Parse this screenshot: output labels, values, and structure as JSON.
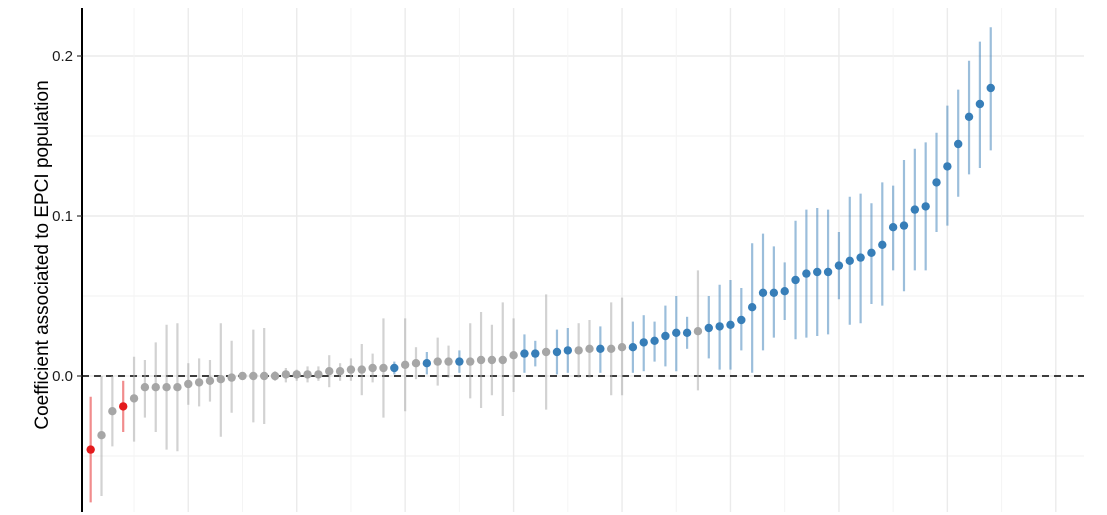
{
  "chart_data": {
    "type": "scatter",
    "title": "",
    "xlabel": "",
    "ylabel": "Coefficient associated to EPCI population",
    "ylim": [
      -0.085,
      0.23
    ],
    "xlim": [
      0.2,
      92.6
    ],
    "y_ticks": [
      0.0,
      0.1,
      0.2
    ],
    "y_tick_labels": [
      "0.0",
      "0.1",
      "0.2"
    ],
    "reference_line": {
      "y": 0.0,
      "style": "dashed"
    },
    "grid": true,
    "legend": "none",
    "colors": {
      "negative_significant": "#e41a1c",
      "non_significant": "#a6a6a6",
      "positive_significant": "#377eb8",
      "grid": "#ebebeb"
    },
    "categories_per_point": [
      "negative",
      "non_significant",
      "positive"
    ],
    "points": [
      {
        "x": 1,
        "y": -0.046,
        "lo": -0.079,
        "hi": -0.013,
        "group": "negative"
      },
      {
        "x": 2,
        "y": -0.037,
        "lo": -0.075,
        "hi": 0.0,
        "group": "non_significant"
      },
      {
        "x": 3,
        "y": -0.022,
        "lo": -0.044,
        "hi": 0.0,
        "group": "non_significant"
      },
      {
        "x": 4,
        "y": -0.019,
        "lo": -0.035,
        "hi": -0.003,
        "group": "negative"
      },
      {
        "x": 5,
        "y": -0.014,
        "lo": -0.041,
        "hi": 0.012,
        "group": "non_significant"
      },
      {
        "x": 6,
        "y": -0.007,
        "lo": -0.026,
        "hi": 0.01,
        "group": "non_significant"
      },
      {
        "x": 7,
        "y": -0.007,
        "lo": -0.035,
        "hi": 0.021,
        "group": "non_significant"
      },
      {
        "x": 8,
        "y": -0.007,
        "lo": -0.046,
        "hi": 0.032,
        "group": "non_significant"
      },
      {
        "x": 9,
        "y": -0.007,
        "lo": -0.047,
        "hi": 0.033,
        "group": "non_significant"
      },
      {
        "x": 10,
        "y": -0.005,
        "lo": -0.018,
        "hi": 0.008,
        "group": "non_significant"
      },
      {
        "x": 11,
        "y": -0.004,
        "lo": -0.019,
        "hi": 0.011,
        "group": "non_significant"
      },
      {
        "x": 12,
        "y": -0.003,
        "lo": -0.016,
        "hi": 0.01,
        "group": "non_significant"
      },
      {
        "x": 13,
        "y": -0.002,
        "lo": -0.038,
        "hi": 0.033,
        "group": "non_significant"
      },
      {
        "x": 14,
        "y": -0.001,
        "lo": -0.023,
        "hi": 0.022,
        "group": "non_significant"
      },
      {
        "x": 15,
        "y": 0.0,
        "lo": -0.002,
        "hi": 0.002,
        "group": "non_significant"
      },
      {
        "x": 16,
        "y": 0.0,
        "lo": -0.029,
        "hi": 0.029,
        "group": "non_significant"
      },
      {
        "x": 17,
        "y": 0.0,
        "lo": -0.03,
        "hi": 0.03,
        "group": "non_significant"
      },
      {
        "x": 18,
        "y": 0.0,
        "lo": -0.003,
        "hi": 0.003,
        "group": "non_significant"
      },
      {
        "x": 19,
        "y": 0.001,
        "lo": -0.004,
        "hi": 0.005,
        "group": "non_significant"
      },
      {
        "x": 20,
        "y": 0.001,
        "lo": -0.003,
        "hi": 0.004,
        "group": "non_significant"
      },
      {
        "x": 21,
        "y": 0.001,
        "lo": -0.004,
        "hi": 0.006,
        "group": "non_significant"
      },
      {
        "x": 22,
        "y": 0.001,
        "lo": -0.003,
        "hi": 0.006,
        "group": "non_significant"
      },
      {
        "x": 23,
        "y": 0.003,
        "lo": -0.007,
        "hi": 0.013,
        "group": "non_significant"
      },
      {
        "x": 24,
        "y": 0.003,
        "lo": -0.003,
        "hi": 0.008,
        "group": "non_significant"
      },
      {
        "x": 25,
        "y": 0.004,
        "lo": -0.003,
        "hi": 0.011,
        "group": "non_significant"
      },
      {
        "x": 26,
        "y": 0.004,
        "lo": -0.012,
        "hi": 0.02,
        "group": "non_significant"
      },
      {
        "x": 27,
        "y": 0.005,
        "lo": -0.004,
        "hi": 0.014,
        "group": "non_significant"
      },
      {
        "x": 28,
        "y": 0.005,
        "lo": -0.026,
        "hi": 0.036,
        "group": "non_significant"
      },
      {
        "x": 29,
        "y": 0.005,
        "lo": 0.001,
        "hi": 0.009,
        "group": "positive"
      },
      {
        "x": 30,
        "y": 0.007,
        "lo": -0.022,
        "hi": 0.036,
        "group": "non_significant"
      },
      {
        "x": 31,
        "y": 0.008,
        "lo": -0.002,
        "hi": 0.018,
        "group": "non_significant"
      },
      {
        "x": 32,
        "y": 0.008,
        "lo": 0.001,
        "hi": 0.015,
        "group": "positive"
      },
      {
        "x": 33,
        "y": 0.009,
        "lo": -0.006,
        "hi": 0.024,
        "group": "non_significant"
      },
      {
        "x": 34,
        "y": 0.009,
        "lo": -0.001,
        "hi": 0.019,
        "group": "non_significant"
      },
      {
        "x": 35,
        "y": 0.009,
        "lo": 0.002,
        "hi": 0.016,
        "group": "positive"
      },
      {
        "x": 36,
        "y": 0.009,
        "lo": -0.014,
        "hi": 0.033,
        "group": "non_significant"
      },
      {
        "x": 37,
        "y": 0.01,
        "lo": -0.02,
        "hi": 0.04,
        "group": "non_significant"
      },
      {
        "x": 38,
        "y": 0.01,
        "lo": -0.012,
        "hi": 0.032,
        "group": "non_significant"
      },
      {
        "x": 39,
        "y": 0.01,
        "lo": -0.025,
        "hi": 0.046,
        "group": "non_significant"
      },
      {
        "x": 40,
        "y": 0.013,
        "lo": -0.01,
        "hi": 0.036,
        "group": "non_significant"
      },
      {
        "x": 41,
        "y": 0.014,
        "lo": 0.002,
        "hi": 0.026,
        "group": "positive"
      },
      {
        "x": 42,
        "y": 0.014,
        "lo": 0.006,
        "hi": 0.022,
        "group": "positive"
      },
      {
        "x": 43,
        "y": 0.015,
        "lo": -0.021,
        "hi": 0.051,
        "group": "non_significant"
      },
      {
        "x": 44,
        "y": 0.015,
        "lo": 0.001,
        "hi": 0.029,
        "group": "positive"
      },
      {
        "x": 45,
        "y": 0.016,
        "lo": 0.002,
        "hi": 0.03,
        "group": "positive"
      },
      {
        "x": 46,
        "y": 0.016,
        "lo": -0.001,
        "hi": 0.033,
        "group": "non_significant"
      },
      {
        "x": 47,
        "y": 0.017,
        "lo": -0.001,
        "hi": 0.035,
        "group": "non_significant"
      },
      {
        "x": 48,
        "y": 0.017,
        "lo": 0.002,
        "hi": 0.031,
        "group": "positive"
      },
      {
        "x": 49,
        "y": 0.017,
        "lo": -0.012,
        "hi": 0.046,
        "group": "non_significant"
      },
      {
        "x": 50,
        "y": 0.018,
        "lo": -0.012,
        "hi": 0.049,
        "group": "non_significant"
      },
      {
        "x": 51,
        "y": 0.018,
        "lo": 0.002,
        "hi": 0.034,
        "group": "positive"
      },
      {
        "x": 52,
        "y": 0.021,
        "lo": 0.003,
        "hi": 0.038,
        "group": "positive"
      },
      {
        "x": 53,
        "y": 0.022,
        "lo": 0.009,
        "hi": 0.034,
        "group": "positive"
      },
      {
        "x": 54,
        "y": 0.025,
        "lo": 0.006,
        "hi": 0.044,
        "group": "positive"
      },
      {
        "x": 55,
        "y": 0.027,
        "lo": 0.003,
        "hi": 0.05,
        "group": "positive"
      },
      {
        "x": 56,
        "y": 0.027,
        "lo": 0.017,
        "hi": 0.037,
        "group": "positive"
      },
      {
        "x": 57,
        "y": 0.028,
        "lo": -0.009,
        "hi": 0.066,
        "group": "non_significant"
      },
      {
        "x": 58,
        "y": 0.03,
        "lo": 0.011,
        "hi": 0.05,
        "group": "positive"
      },
      {
        "x": 59,
        "y": 0.031,
        "lo": 0.004,
        "hi": 0.057,
        "group": "positive"
      },
      {
        "x": 60,
        "y": 0.032,
        "lo": 0.004,
        "hi": 0.06,
        "group": "positive"
      },
      {
        "x": 61,
        "y": 0.035,
        "lo": 0.016,
        "hi": 0.055,
        "group": "positive"
      },
      {
        "x": 62,
        "y": 0.043,
        "lo": 0.002,
        "hi": 0.083,
        "group": "positive"
      },
      {
        "x": 63,
        "y": 0.052,
        "lo": 0.016,
        "hi": 0.089,
        "group": "positive"
      },
      {
        "x": 64,
        "y": 0.052,
        "lo": 0.024,
        "hi": 0.081,
        "group": "positive"
      },
      {
        "x": 65,
        "y": 0.053,
        "lo": 0.035,
        "hi": 0.071,
        "group": "positive"
      },
      {
        "x": 66,
        "y": 0.06,
        "lo": 0.023,
        "hi": 0.097,
        "group": "positive"
      },
      {
        "x": 67,
        "y": 0.064,
        "lo": 0.024,
        "hi": 0.104,
        "group": "positive"
      },
      {
        "x": 68,
        "y": 0.065,
        "lo": 0.025,
        "hi": 0.105,
        "group": "positive"
      },
      {
        "x": 69,
        "y": 0.065,
        "lo": 0.026,
        "hi": 0.104,
        "group": "positive"
      },
      {
        "x": 70,
        "y": 0.069,
        "lo": 0.048,
        "hi": 0.09,
        "group": "positive"
      },
      {
        "x": 71,
        "y": 0.072,
        "lo": 0.032,
        "hi": 0.112,
        "group": "positive"
      },
      {
        "x": 72,
        "y": 0.074,
        "lo": 0.033,
        "hi": 0.114,
        "group": "positive"
      },
      {
        "x": 73,
        "y": 0.077,
        "lo": 0.045,
        "hi": 0.108,
        "group": "positive"
      },
      {
        "x": 74,
        "y": 0.082,
        "lo": 0.044,
        "hi": 0.121,
        "group": "positive"
      },
      {
        "x": 75,
        "y": 0.093,
        "lo": 0.066,
        "hi": 0.119,
        "group": "positive"
      },
      {
        "x": 76,
        "y": 0.094,
        "lo": 0.053,
        "hi": 0.135,
        "group": "positive"
      },
      {
        "x": 77,
        "y": 0.104,
        "lo": 0.066,
        "hi": 0.142,
        "group": "positive"
      },
      {
        "x": 78,
        "y": 0.106,
        "lo": 0.066,
        "hi": 0.146,
        "group": "positive"
      },
      {
        "x": 79,
        "y": 0.121,
        "lo": 0.09,
        "hi": 0.152,
        "group": "positive"
      },
      {
        "x": 80,
        "y": 0.131,
        "lo": 0.094,
        "hi": 0.169,
        "group": "positive"
      },
      {
        "x": 81,
        "y": 0.145,
        "lo": 0.112,
        "hi": 0.179,
        "group": "positive"
      },
      {
        "x": 82,
        "y": 0.162,
        "lo": 0.126,
        "hi": 0.197,
        "group": "positive"
      },
      {
        "x": 83,
        "y": 0.17,
        "lo": 0.13,
        "hi": 0.209,
        "group": "positive"
      },
      {
        "x": 84,
        "y": 0.18,
        "lo": 0.141,
        "hi": 0.218,
        "group": "positive"
      }
    ]
  }
}
